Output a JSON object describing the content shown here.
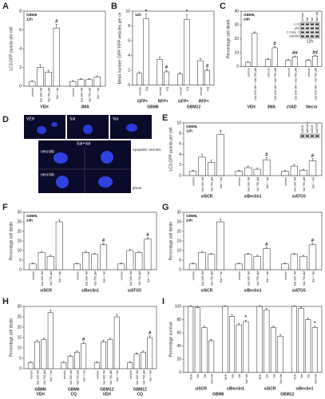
{
  "chart_data": [
    {
      "type": "bar",
      "panel": "A",
      "note": [
        "GBM5",
        "12h"
      ],
      "ylabel": "LC3-GFP puncta per cell",
      "ylim": [
        0,
        8
      ],
      "yticks": [
        0,
        2,
        4,
        6,
        8
      ],
      "categories": [
        "vehicle",
        "Sal 100 nM",
        "Val 750 µM",
        "Sal + Val",
        "vehicle",
        "Sal 100 nM",
        "Val 750 µM",
        "Sal + Val"
      ],
      "group_labels": [
        "VEH",
        "3MA"
      ],
      "values": [
        0.5,
        2.0,
        1.5,
        6.2,
        0.5,
        0.7,
        0.7,
        1.0
      ],
      "errors": [
        0.1,
        0.3,
        0.2,
        0.4,
        0.1,
        0.1,
        0.1,
        0.1
      ],
      "markers": [
        null,
        null,
        null,
        "#",
        null,
        null,
        null,
        null
      ],
      "color": "#ffffff"
    },
    {
      "type": "bar",
      "panel": "B",
      "note": [
        "12h"
      ],
      "ylabel": "Mean number GFP/ RFP vesicles per ce",
      "ylim": [
        0,
        10
      ],
      "yticks": [
        0,
        2,
        4,
        6,
        8,
        10
      ],
      "categories": [
        "vehicle",
        "CQ",
        "vehicle",
        "CQ",
        "vehicle",
        "CQ",
        "vehicle",
        "CQ"
      ],
      "group_labels": [
        "GFP+",
        "RFP+",
        "GFP+",
        "RFP+"
      ],
      "super_labels": [
        "GBM6",
        "GBM12"
      ],
      "values": [
        1.6,
        9.0,
        3.5,
        1.8,
        1.5,
        8.9,
        3.3,
        2.0
      ],
      "errors": [
        0.2,
        0.6,
        0.3,
        0.2,
        0.2,
        0.6,
        0.3,
        0.2
      ],
      "markers": [
        null,
        "*",
        null,
        "#",
        null,
        "*",
        null,
        "#"
      ],
      "color": "#ffffff"
    },
    {
      "type": "bar",
      "panel": "C",
      "note": [
        "GBM5,",
        "24h"
      ],
      "ylabel": "Percentage cell death",
      "ylim": [
        0,
        40
      ],
      "yticks": [
        0,
        10,
        20,
        30,
        40
      ],
      "categories": [
        "vehicle",
        "Sal 100 nM + Val 750 µM",
        "vehicle",
        "Sal 100 nM + Val 750 µM",
        "vehicle",
        "Sal 100 nM + Val 750 µM",
        "vehicle",
        "Sal 100 nM + Val 750 µM"
      ],
      "group_labels": [
        "VEH",
        "3MA",
        "zVAD",
        "Necro"
      ],
      "values": [
        3,
        24,
        5,
        13.5,
        4.5,
        7,
        4.5,
        7.5
      ],
      "errors": [
        0.4,
        1.0,
        0.5,
        1.0,
        0.5,
        0.6,
        0.5,
        0.6
      ],
      "markers": [
        null,
        null,
        null,
        "#",
        null,
        "##",
        null,
        "##"
      ],
      "color": "#ffffff",
      "blot": {
        "time": "12h",
        "lanes": [
          "vehicle",
          "Sal",
          "Val",
          "Sal+Val"
        ],
        "rows": [
          "LC3",
          "p62",
          "C-Casp. 3",
          "GAPDH"
        ]
      }
    },
    {
      "type": "bar",
      "panel": "E",
      "note": [
        "GBM5,",
        "12h"
      ],
      "ylabel": "LC3-GFP puncta per cell",
      "ylim": [
        0,
        10
      ],
      "yticks": [
        0,
        2,
        4,
        6,
        8,
        10
      ],
      "categories": [
        "vehicle",
        "Sal 100 nM",
        "Val 750 µM",
        "Sal + Val",
        "vehicle",
        "Sal 100 nM",
        "Val 750 µM",
        "Sal + Val",
        "vehicle",
        "Sal 100 nM",
        "Val 750 µM",
        "Sal + Val"
      ],
      "group_labels": [
        "siSCR",
        "siBeclin1",
        "siATG5"
      ],
      "values": [
        0.8,
        3.5,
        2.5,
        7.8,
        0.8,
        1.5,
        1.2,
        3.0,
        0.8,
        1.8,
        1.0,
        2.8
      ],
      "errors": [
        0.2,
        0.5,
        0.4,
        0.8,
        0.2,
        0.3,
        0.2,
        0.4,
        0.2,
        0.3,
        0.2,
        0.4
      ],
      "markers": [
        null,
        null,
        null,
        null,
        null,
        null,
        null,
        "#",
        null,
        null,
        null,
        "#"
      ],
      "color": "#ffffff",
      "blot": {
        "lanes": [
          "siSCR",
          "siBeclin1",
          "siSCR",
          "siATG5"
        ],
        "rows": []
      }
    },
    {
      "type": "bar",
      "panel": "F",
      "note": [
        "GBM5,",
        "24h"
      ],
      "ylabel": "Percentage cell death",
      "ylim": [
        0,
        30
      ],
      "yticks": [
        0,
        5,
        10,
        15,
        20,
        25,
        30
      ],
      "categories": [
        "vehicle",
        "Sal 100 nM",
        "Val 750 µM",
        "Sal + Val",
        "vehicle",
        "Sal 100 nM",
        "Val 750 µM",
        "Sal + Val",
        "vehicle",
        "Sal 100 nM",
        "Val 750 µM",
        "Sal + Val"
      ],
      "group_labels": [
        "siSCR",
        "siBeclin1",
        "siATG5"
      ],
      "values": [
        3,
        9,
        7,
        25,
        3,
        9,
        8,
        13,
        3,
        10,
        9,
        16
      ],
      "errors": [
        0.4,
        0.6,
        0.5,
        1.0,
        0.4,
        0.6,
        0.5,
        0.8,
        0.4,
        0.6,
        0.5,
        0.8
      ],
      "markers": [
        null,
        null,
        null,
        null,
        null,
        null,
        null,
        "#",
        null,
        null,
        null,
        "#"
      ],
      "color": "#ffffff"
    },
    {
      "type": "bar",
      "panel": "G",
      "note": [
        "GBM6,",
        "24h"
      ],
      "ylabel": "Percentage cell death",
      "ylim": [
        0,
        30
      ],
      "yticks": [
        0,
        5,
        10,
        15,
        20,
        25,
        30
      ],
      "categories": [
        "vehicle",
        "Sal 100 nM",
        "Val 750 µM",
        "Sal + Val",
        "vehicle",
        "Sal 100 nM",
        "Val 750 µM",
        "Sal + Val",
        "vehicle",
        "Sal 100 nM",
        "Val 750 µM",
        "Sal + Val"
      ],
      "group_labels": [
        "siSCR",
        "siBeclin1",
        "siATG5"
      ],
      "values": [
        3,
        9,
        8,
        25,
        3,
        8,
        7,
        11,
        3,
        8,
        7,
        13
      ],
      "errors": [
        0.4,
        0.6,
        0.5,
        1.5,
        0.4,
        0.5,
        0.5,
        0.8,
        0.4,
        0.6,
        0.5,
        0.8
      ],
      "markers": [
        null,
        null,
        null,
        null,
        null,
        null,
        null,
        "#",
        null,
        null,
        null,
        "#"
      ],
      "color": "#ffffff"
    },
    {
      "type": "bar",
      "panel": "H",
      "ylabel": "Percentage cell death",
      "ylim": [
        0,
        30
      ],
      "yticks": [
        0,
        5,
        10,
        15,
        20,
        25,
        30
      ],
      "categories": [
        "vehicle",
        "Sal 100 nM",
        "Val 750 µM",
        "Sal + Val",
        "vehicle",
        "Sal 100 nM",
        "Val 750 µM",
        "Sal + Val",
        "vehicle",
        "Sal 100 nM",
        "Val 750 µM",
        "Sal + Val",
        "vehicle",
        "Sal 100 nM",
        "Val 750 µM",
        "Sal + Val"
      ],
      "group_labels": [
        "GBM6",
        "GBM6",
        "GBM12",
        "GBM12"
      ],
      "group_sublabels": [
        "VEH",
        "CQ",
        "VEH",
        "CQ"
      ],
      "values": [
        3,
        13,
        14,
        27,
        3,
        6,
        8,
        12,
        3,
        13,
        14,
        25,
        3,
        7,
        8,
        15
      ],
      "errors": [
        0.4,
        0.8,
        0.8,
        1.2,
        0.4,
        0.5,
        0.5,
        0.8,
        0.4,
        0.8,
        0.8,
        1.2,
        0.4,
        0.5,
        0.5,
        0.8
      ],
      "markers": [
        null,
        null,
        null,
        null,
        null,
        null,
        null,
        "#",
        null,
        null,
        null,
        null,
        null,
        null,
        null,
        "#"
      ],
      "color": "#ffffff"
    },
    {
      "type": "bar",
      "panel": "I",
      "ylabel": "Percentage survival",
      "ylim": [
        0,
        100
      ],
      "yticks": [
        0,
        20,
        40,
        60,
        80,
        100
      ],
      "categories": [
        "VEH",
        "Sal",
        "Val",
        "Sal+Val",
        "VEH",
        "Sal",
        "Val",
        "Sal+Val",
        "VEH",
        "Sal",
        "Val",
        "Sal+Val",
        "VEH",
        "Sal",
        "Val",
        "Sal+Val"
      ],
      "group_labels": [
        "siSCR",
        "siBeclin1",
        "siSCR",
        "siBeclin1"
      ],
      "super_labels": [
        "GBM6",
        "GBM12"
      ],
      "values": [
        100,
        98,
        68,
        48,
        100,
        85,
        72,
        77,
        100,
        95,
        68,
        55,
        100,
        97,
        80,
        68
      ],
      "errors": [
        1,
        2,
        2,
        2,
        1,
        2,
        2,
        2,
        1,
        2,
        2,
        2,
        1,
        2,
        2,
        2
      ],
      "markers": [
        null,
        null,
        null,
        null,
        null,
        null,
        null,
        "*",
        null,
        null,
        null,
        null,
        null,
        null,
        null,
        "*"
      ],
      "color": "#ffffff"
    }
  ],
  "images": {
    "panel": "D",
    "top": [
      "VEH",
      "Sal",
      "Val"
    ],
    "bottom_title": "Sal+Val",
    "labels": [
      "necrotic",
      "necrotic",
      "Apoptotic necrotic",
      "ghost"
    ]
  }
}
